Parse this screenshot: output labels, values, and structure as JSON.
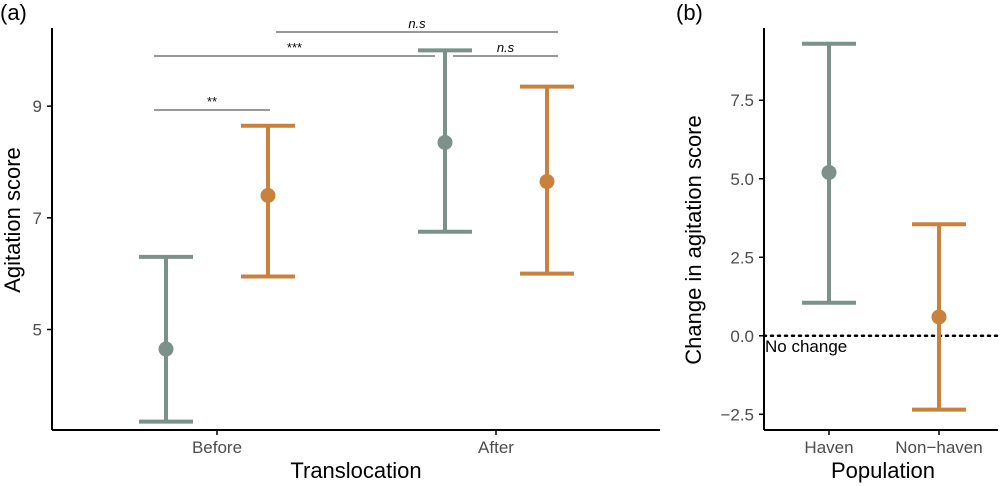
{
  "colors": {
    "haven": "#7b9189",
    "non_haven": "#c9823d",
    "axis": "#000000",
    "tick_text": "#4d4d4d"
  },
  "chart_data": [
    {
      "type": "scatter",
      "panel": "(a)",
      "xlabel": "Translocation",
      "ylabel": "Agitation score",
      "categories": [
        "Before",
        "After"
      ],
      "ylim": [
        3.2,
        10.4
      ],
      "yticks": [
        "5",
        "7",
        "9"
      ],
      "grid": false,
      "series": [
        {
          "values": [
            4.65,
            8.35
          ],
          "lower": [
            3.35,
            6.75
          ],
          "upper": [
            6.3,
            10.0
          ]
        },
        {
          "values": [
            7.4,
            7.65
          ],
          "lower": [
            5.95,
            6.0
          ],
          "upper": [
            8.65,
            9.35
          ]
        }
      ],
      "annotations": [
        {
          "text": "**",
          "italic": false
        },
        {
          "text": "***",
          "italic": false
        },
        {
          "text": "n.s",
          "italic": true
        },
        {
          "text": "n.s",
          "italic": true
        }
      ]
    },
    {
      "type": "scatter",
      "panel": "(b)",
      "xlabel": "Population",
      "ylabel": "Change in agitation score",
      "categories": [
        "Haven",
        "Non−haven"
      ],
      "ylim": [
        -3.0,
        9.8
      ],
      "yticks": [
        "−2.5",
        "0.0",
        "2.5",
        "5.0",
        "7.5"
      ],
      "grid": false,
      "values": [
        5.2,
        0.6
      ],
      "lower": [
        1.05,
        -2.35
      ],
      "upper": [
        9.3,
        3.55
      ],
      "reference_line": {
        "y": 0.0,
        "label": "No change"
      }
    }
  ]
}
